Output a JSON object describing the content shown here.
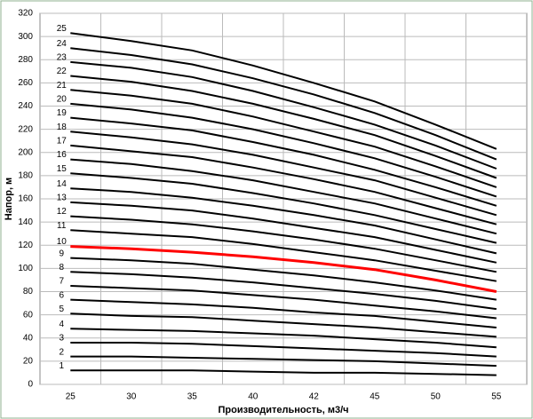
{
  "chart_data": {
    "type": "line",
    "x_label": "Производительность, м3/ч",
    "y_label": "Напор, м",
    "categories": [
      "25",
      "30",
      "35",
      "40",
      "42",
      "45",
      "50",
      "55"
    ],
    "ylim": [
      0,
      320
    ],
    "yticks": [
      0,
      20,
      40,
      60,
      80,
      100,
      120,
      140,
      160,
      180,
      200,
      220,
      240,
      260,
      280,
      300,
      320
    ],
    "grid": true,
    "series": [
      {
        "name": "1",
        "color": "#000000",
        "values": [
          12,
          12,
          12,
          11,
          10,
          10,
          9,
          8
        ]
      },
      {
        "name": "2",
        "color": "#000000",
        "values": [
          24,
          24,
          23,
          22,
          21,
          20,
          18,
          16
        ]
      },
      {
        "name": "3",
        "color": "#000000",
        "values": [
          36,
          36,
          35,
          33,
          31,
          29,
          27,
          24
        ]
      },
      {
        "name": "4",
        "color": "#000000",
        "values": [
          48,
          47,
          46,
          44,
          42,
          39,
          36,
          32
        ]
      },
      {
        "name": "5",
        "color": "#000000",
        "values": [
          61,
          59,
          58,
          55,
          52,
          49,
          45,
          41
        ]
      },
      {
        "name": "6",
        "color": "#000000",
        "values": [
          73,
          71,
          69,
          66,
          62,
          59,
          54,
          49
        ]
      },
      {
        "name": "7",
        "color": "#000000",
        "values": [
          85,
          83,
          81,
          77,
          73,
          68,
          63,
          57
        ]
      },
      {
        "name": "8",
        "color": "#000000",
        "values": [
          97,
          95,
          92,
          88,
          83,
          78,
          72,
          65
        ]
      },
      {
        "name": "9",
        "color": "#000000",
        "values": [
          109,
          107,
          104,
          99,
          94,
          88,
          81,
          73
        ]
      },
      {
        "name": "10",
        "color": "#ff0000",
        "values": [
          119,
          117,
          114,
          110,
          105,
          99,
          90,
          80
        ]
      },
      {
        "name": "11",
        "color": "#000000",
        "values": [
          133,
          130,
          127,
          121,
          114,
          107,
          98,
          89
        ]
      },
      {
        "name": "12",
        "color": "#000000",
        "values": [
          145,
          142,
          138,
          132,
          125,
          117,
          107,
          97
        ]
      },
      {
        "name": "13",
        "color": "#000000",
        "values": [
          157,
          154,
          150,
          143,
          135,
          127,
          116,
          105
        ]
      },
      {
        "name": "14",
        "color": "#000000",
        "values": [
          169,
          166,
          161,
          154,
          146,
          137,
          125,
          113
        ]
      },
      {
        "name": "15",
        "color": "#000000",
        "values": [
          182,
          178,
          173,
          165,
          156,
          146,
          134,
          122
        ]
      },
      {
        "name": "16",
        "color": "#000000",
        "values": [
          194,
          190,
          184,
          176,
          166,
          156,
          143,
          130
        ]
      },
      {
        "name": "17",
        "color": "#000000",
        "values": [
          206,
          201,
          196,
          187,
          177,
          166,
          152,
          138
        ]
      },
      {
        "name": "18",
        "color": "#000000",
        "values": [
          218,
          213,
          207,
          198,
          187,
          176,
          161,
          146
        ]
      },
      {
        "name": "19",
        "color": "#000000",
        "values": [
          230,
          225,
          219,
          209,
          198,
          185,
          170,
          154
        ]
      },
      {
        "name": "20",
        "color": "#000000",
        "values": [
          242,
          237,
          230,
          220,
          208,
          195,
          179,
          162
        ]
      },
      {
        "name": "21",
        "color": "#000000",
        "values": [
          254,
          249,
          242,
          231,
          218,
          205,
          188,
          170
        ]
      },
      {
        "name": "22",
        "color": "#000000",
        "values": [
          266,
          261,
          253,
          242,
          229,
          215,
          197,
          178
        ]
      },
      {
        "name": "23",
        "color": "#000000",
        "values": [
          278,
          273,
          265,
          253,
          239,
          224,
          206,
          186
        ]
      },
      {
        "name": "24",
        "color": "#000000",
        "values": [
          290,
          284,
          276,
          264,
          250,
          234,
          215,
          194
        ]
      },
      {
        "name": "25",
        "color": "#000000",
        "values": [
          303,
          296,
          288,
          275,
          260,
          244,
          224,
          203
        ]
      }
    ]
  }
}
